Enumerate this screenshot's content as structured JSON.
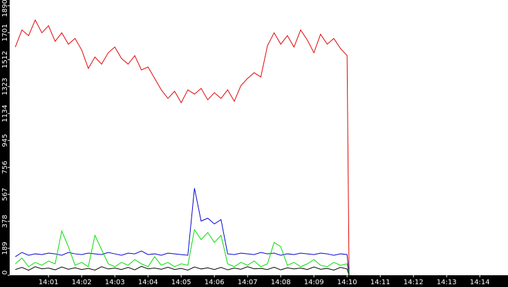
{
  "chart_data": {
    "type": "line",
    "x": [
      0,
      0.2,
      0.4,
      0.6,
      0.8,
      1.0,
      1.2,
      1.4,
      1.6,
      1.8,
      2.0,
      2.2,
      2.4,
      2.6,
      2.8,
      3.0,
      3.2,
      3.4,
      3.6,
      3.8,
      4.0,
      4.2,
      4.4,
      4.6,
      4.8,
      5.0,
      5.2,
      5.4,
      5.6,
      5.8,
      6.0,
      6.2,
      6.4,
      6.6,
      6.8,
      7.0,
      7.2,
      7.4,
      7.6,
      7.8,
      8.0,
      8.2,
      8.4,
      8.6,
      8.8,
      9.0,
      9.2,
      9.4,
      9.6,
      9.8,
      10.0,
      10.06
    ],
    "series": [
      {
        "color": "#e00000",
        "values": [
          1600,
          1720,
          1680,
          1790,
          1700,
          1750,
          1640,
          1700,
          1620,
          1660,
          1580,
          1450,
          1530,
          1480,
          1560,
          1600,
          1520,
          1480,
          1540,
          1440,
          1460,
          1380,
          1300,
          1240,
          1290,
          1210,
          1300,
          1270,
          1310,
          1230,
          1280,
          1240,
          1300,
          1220,
          1330,
          1380,
          1420,
          1390,
          1610,
          1700,
          1620,
          1680,
          1600,
          1720,
          1650,
          1560,
          1690,
          1620,
          1660,
          1590,
          1540,
          0
        ]
      },
      {
        "color": "#0000d0",
        "values": [
          130,
          160,
          140,
          150,
          145,
          155,
          150,
          140,
          160,
          150,
          145,
          155,
          150,
          145,
          160,
          150,
          140,
          155,
          150,
          170,
          145,
          150,
          140,
          155,
          150,
          145,
          140,
          610,
          380,
          400,
          360,
          390,
          150,
          145,
          155,
          150,
          145,
          160,
          150,
          155,
          140,
          150,
          145,
          155,
          150,
          145,
          155,
          150,
          140,
          150,
          145,
          0
        ]
      },
      {
        "color": "#00dd00",
        "values": [
          80,
          120,
          60,
          90,
          70,
          100,
          80,
          310,
          200,
          70,
          90,
          60,
          280,
          180,
          80,
          60,
          90,
          70,
          110,
          80,
          60,
          130,
          70,
          90,
          60,
          80,
          70,
          320,
          250,
          300,
          230,
          280,
          80,
          60,
          90,
          70,
          100,
          60,
          80,
          230,
          200,
          70,
          90,
          60,
          80,
          110,
          70,
          60,
          90,
          70,
          80,
          0
        ]
      },
      {
        "color": "#000000",
        "values": [
          40,
          55,
          35,
          60,
          45,
          50,
          38,
          58,
          42,
          52,
          40,
          48,
          36,
          60,
          44,
          50,
          40,
          55,
          38,
          62,
          45,
          50,
          42,
          56,
          40,
          48,
          36,
          58,
          44,
          52,
          40,
          55,
          38,
          50,
          42,
          60,
          45,
          48,
          40,
          56,
          38,
          52,
          44,
          50,
          40,
          58,
          42,
          48,
          36,
          55,
          44,
          0
        ]
      }
    ],
    "xlim": [
      -0.17,
      14.85
    ],
    "xticks": [
      {
        "value": 1,
        "label": "14:01"
      },
      {
        "value": 2,
        "label": "14:02"
      },
      {
        "value": 3,
        "label": "14:03"
      },
      {
        "value": 4,
        "label": "14:04"
      },
      {
        "value": 5,
        "label": "14:05"
      },
      {
        "value": 6,
        "label": "14:06"
      },
      {
        "value": 7,
        "label": "14:07"
      },
      {
        "value": 8,
        "label": "14:08"
      },
      {
        "value": 9,
        "label": "14:09"
      },
      {
        "value": 10,
        "label": "14:10"
      },
      {
        "value": 11,
        "label": "14:11"
      },
      {
        "value": 12,
        "label": "14:12"
      },
      {
        "value": 13,
        "label": "14:13"
      },
      {
        "value": 14,
        "label": "14:14"
      }
    ],
    "ylim": [
      0,
      1930
    ],
    "yticks": [
      0,
      189,
      378,
      567,
      756,
      945,
      1134,
      1323,
      1512,
      1701,
      1890
    ]
  }
}
